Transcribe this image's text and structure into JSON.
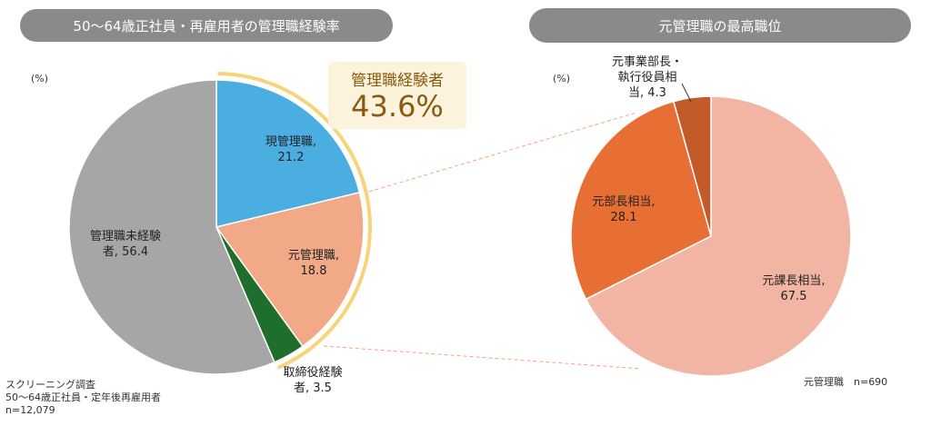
{
  "titles": {
    "left": "50～64歳正社員・再雇用者の管理職経験率",
    "right": "元管理職の最高職位"
  },
  "units": {
    "left": "(%)",
    "right": "(%)"
  },
  "callout": {
    "label": "管理職経験者",
    "value": "43.6%"
  },
  "notes": {
    "left_line1": "スクリーニング調査",
    "left_line2": "50～64歳正社員・定年後再雇用者",
    "left_line3": "n=12,079",
    "right": "元管理職　n=690"
  },
  "chart_data": [
    {
      "type": "pie",
      "title": "50～64歳正社員・再雇用者の管理職経験率",
      "unit": "%",
      "slices": [
        {
          "label_lines": [
            "現管理職,",
            "21.2"
          ],
          "value": 21.2,
          "color": "#4aaee0"
        },
        {
          "label_lines": [
            "元管理職,",
            "18.8"
          ],
          "value": 18.8,
          "color": "#f1a987"
        },
        {
          "label_lines": [
            "取締役経験",
            "者, 3.5"
          ],
          "value": 3.5,
          "color": "#1f6e2b"
        },
        {
          "label_lines": [
            "管理職未経験",
            "者, 56.4"
          ],
          "value": 56.4,
          "color": "#a6a6a6"
        }
      ],
      "highlight": {
        "label": "管理職経験者",
        "value": 43.6,
        "color": "#f7d37a"
      }
    },
    {
      "type": "pie",
      "title": "元管理職の最高職位",
      "unit": "%",
      "slices": [
        {
          "label_lines": [
            "元課長相当,",
            "67.5"
          ],
          "value": 67.5,
          "color": "#f2b5a3"
        },
        {
          "label_lines": [
            "元部長相当,",
            "28.1"
          ],
          "value": 28.1,
          "color": "#e86f33"
        },
        {
          "label_lines": [
            "元事業部長・",
            "執行役員相",
            "当, 4.3"
          ],
          "value": 4.3,
          "color": "#c25a2a"
        }
      ]
    }
  ]
}
